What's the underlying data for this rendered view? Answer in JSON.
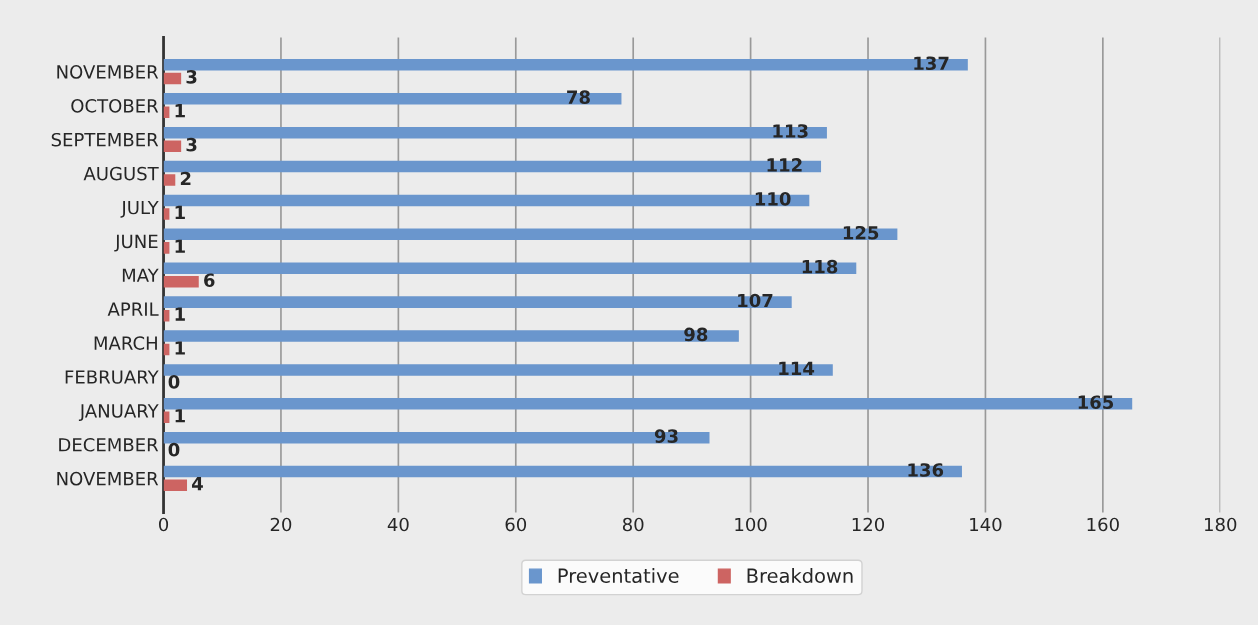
{
  "chart_data": {
    "type": "bar",
    "orientation": "horizontal",
    "categories": [
      "NOVEMBER",
      "OCTOBER",
      "SEPTEMBER",
      "AUGUST",
      "JULY",
      "JUNE",
      "MAY",
      "APRIL",
      "MARCH",
      "FEBRUARY",
      "JANUARY",
      "DECEMBER",
      "NOVEMBER"
    ],
    "series": [
      {
        "name": "Preventative",
        "color": "#6a96cd",
        "values": [
          137,
          78,
          113,
          112,
          110,
          125,
          118,
          107,
          98,
          114,
          165,
          93,
          136
        ]
      },
      {
        "name": "Breakdown",
        "color": "#cd6462",
        "values": [
          3,
          1,
          3,
          2,
          1,
          1,
          6,
          1,
          1,
          0,
          1,
          0,
          4
        ]
      }
    ],
    "xlim": [
      0,
      180
    ],
    "xticks": [
      0,
      20,
      40,
      60,
      80,
      100,
      120,
      140,
      160,
      180
    ],
    "grid": "x",
    "legend": "bottom",
    "data_labels": true
  }
}
